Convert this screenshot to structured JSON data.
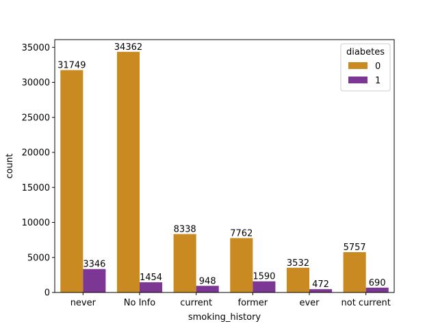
{
  "chart_data": {
    "type": "bar",
    "xlabel": "smoking_history",
    "ylabel": "count",
    "categories": [
      "never",
      "No Info",
      "current",
      "former",
      "ever",
      "not current"
    ],
    "series": [
      {
        "name": "0",
        "values": [
          31749,
          34362,
          8338,
          7762,
          3532,
          5757
        ],
        "color": "#c98b21"
      },
      {
        "name": "1",
        "values": [
          3346,
          1454,
          948,
          1590,
          472,
          690
        ],
        "color": "#7b3793"
      }
    ],
    "ylim": [
      0,
      36100
    ],
    "yticks": [
      0,
      5000,
      10000,
      15000,
      20000,
      25000,
      30000,
      35000
    ],
    "legend": {
      "title": "diabetes",
      "placement": "top-right"
    },
    "grid": false
  }
}
